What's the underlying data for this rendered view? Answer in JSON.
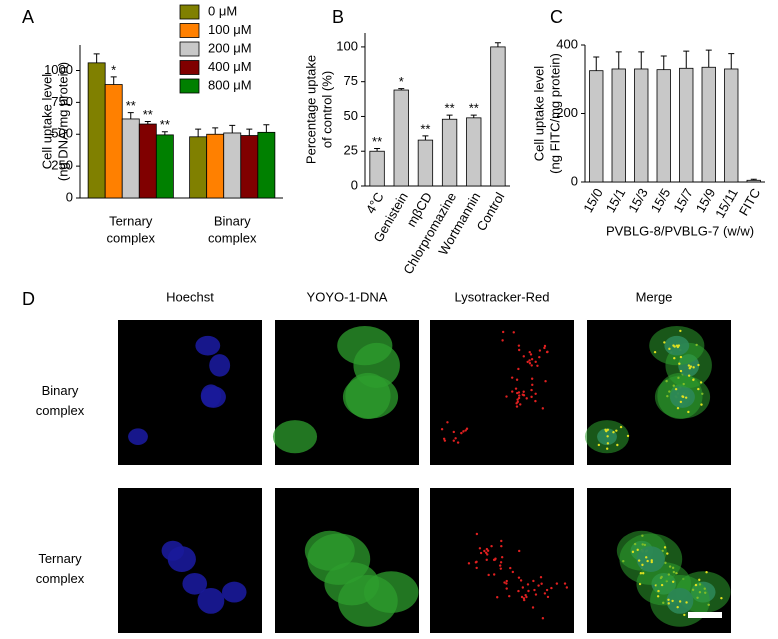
{
  "chart_data": [
    {
      "type": "bar",
      "panel": "A",
      "ylabel": [
        "Cell uptake level",
        "(ng DNA/mg protein)"
      ],
      "categories": [
        "Ternary complex",
        "Binary complex"
      ],
      "series": [
        {
          "name": "0 μM",
          "color": "#808000",
          "values": [
            1060,
            480
          ],
          "errors": [
            70,
            60
          ],
          "annotations": [
            null,
            null
          ]
        },
        {
          "name": "100 μM",
          "color": "#ff8000",
          "values": [
            890,
            500
          ],
          "errors": [
            60,
            50
          ],
          "annotations": [
            "*",
            null
          ]
        },
        {
          "name": "200 μM",
          "color": "#c8c8c8",
          "values": [
            620,
            510
          ],
          "errors": [
            50,
            60
          ],
          "annotations": [
            "**",
            null
          ]
        },
        {
          "name": "400 μM",
          "color": "#800000",
          "values": [
            580,
            490
          ],
          "errors": [
            20,
            50
          ],
          "annotations": [
            "**",
            null
          ]
        },
        {
          "name": "800 μM",
          "color": "#008000",
          "values": [
            495,
            515
          ],
          "errors": [
            25,
            60
          ],
          "annotations": [
            "**",
            null
          ]
        }
      ],
      "ylim": [
        0,
        1200
      ],
      "yticks": [
        0,
        250,
        500,
        750,
        1000
      ],
      "legend": "top-right"
    },
    {
      "type": "bar",
      "panel": "B",
      "ylabel": [
        "Percentage uptake",
        "of control (%)"
      ],
      "categories": [
        "4°C",
        "Genistein",
        "mβCD",
        "Chlorpromazine",
        "Wortmannin",
        "Control"
      ],
      "series": [
        {
          "color": "#c8c8c8",
          "values": [
            25,
            69,
            33,
            48,
            49,
            100
          ],
          "errors": [
            2,
            1,
            3,
            3,
            2,
            3
          ],
          "annotations": [
            "**",
            "*",
            "**",
            "**",
            "**",
            null
          ]
        }
      ],
      "ylim": [
        0,
        110
      ],
      "yticks": [
        0,
        25,
        50,
        75,
        100
      ]
    },
    {
      "type": "bar",
      "panel": "C",
      "ylabel": [
        "Cell uptake level",
        "(ng FITC/mg protein)"
      ],
      "xlabel": "PVBLG-8/PVBLG-7 (w/w)",
      "categories": [
        "15/0",
        "15/1",
        "15/3",
        "15/5",
        "15/7",
        "15/9",
        "15/11",
        "FITC"
      ],
      "series": [
        {
          "color": "#c8c8c8",
          "values": [
            325,
            330,
            330,
            328,
            332,
            335,
            330,
            5
          ],
          "errors": [
            40,
            50,
            50,
            40,
            50,
            50,
            45,
            3
          ],
          "annotations": [
            null,
            null,
            null,
            null,
            null,
            null,
            null,
            null
          ]
        }
      ],
      "ylim": [
        0,
        400
      ],
      "yticks": [
        0,
        200,
        400
      ]
    }
  ],
  "panel_d": {
    "panel": "D",
    "columns": [
      "Hoechst",
      "YOYO-1-DNA",
      "Lysotracker-Red",
      "Merge"
    ],
    "rows": [
      "Binary complex",
      "Ternary complex"
    ]
  }
}
